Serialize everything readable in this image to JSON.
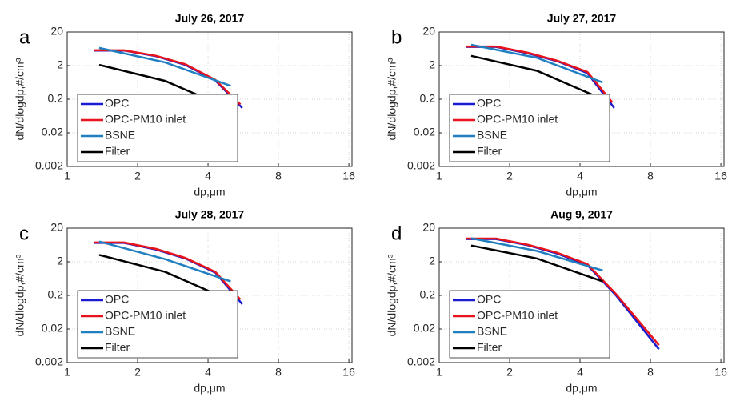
{
  "chart_data": [
    {
      "type": "line",
      "label": "a",
      "title": "July 26, 2017",
      "xlabel": "dp,μm",
      "ylabel": "dN/dlogdp,#/cm³",
      "xscale": "log",
      "yscale": "log",
      "xlim": [
        1,
        16.5
      ],
      "ylim": [
        0.002,
        20
      ],
      "xticks": [
        1,
        2,
        4,
        8,
        16
      ],
      "yticks": [
        0.002,
        0.02,
        0.2,
        2,
        20
      ],
      "grid": true,
      "legend": "lower left",
      "series": [
        {
          "name": "OPC",
          "color": "#1a1ad0",
          "x": [
            1.3,
            1.75,
            2.4,
            3.2,
            4.3,
            5.6
          ],
          "values": [
            5.6,
            5.6,
            3.8,
            2.1,
            0.72,
            0.11
          ]
        },
        {
          "name": "OPC-PM10 inlet",
          "color": "#e8141c",
          "x": [
            1.3,
            1.75,
            2.4,
            3.2,
            4.3,
            5.5
          ],
          "values": [
            5.7,
            5.7,
            3.9,
            2.2,
            0.75,
            0.14
          ]
        },
        {
          "name": "BSNE",
          "color": "#1f7fc0",
          "x": [
            1.37,
            2.62,
            5.0
          ],
          "values": [
            6.7,
            2.5,
            0.5
          ]
        },
        {
          "name": "Filter",
          "color": "#000000",
          "x": [
            1.37,
            2.62,
            5.0
          ],
          "values": [
            2.1,
            0.7,
            0.1
          ]
        }
      ]
    },
    {
      "type": "line",
      "label": "b",
      "title": "July 27, 2017",
      "xlabel": "dp,μm",
      "ylabel": "dN/dlogdp,#/cm³",
      "xscale": "log",
      "yscale": "log",
      "xlim": [
        1,
        16.5
      ],
      "ylim": [
        0.002,
        20
      ],
      "xticks": [
        1,
        2,
        4,
        8,
        16
      ],
      "yticks": [
        0.002,
        0.02,
        0.2,
        2,
        20
      ],
      "grid": true,
      "legend": "lower left",
      "series": [
        {
          "name": "OPC",
          "color": "#1a1ad0",
          "x": [
            1.3,
            1.75,
            2.4,
            3.2,
            4.3,
            5.6
          ],
          "values": [
            7.2,
            7.2,
            4.6,
            2.7,
            1.2,
            0.11
          ]
        },
        {
          "name": "OPC-PM10 inlet",
          "color": "#e8141c",
          "x": [
            1.3,
            1.75,
            2.4,
            3.2,
            4.3,
            5.5
          ],
          "values": [
            7.4,
            7.4,
            4.8,
            2.8,
            1.3,
            0.16
          ]
        },
        {
          "name": "BSNE",
          "color": "#1f7fc0",
          "x": [
            1.37,
            2.62,
            5.0
          ],
          "values": [
            8.3,
            3.4,
            0.63
          ]
        },
        {
          "name": "Filter",
          "color": "#000000",
          "x": [
            1.37,
            2.62,
            5.0
          ],
          "values": [
            3.9,
            1.4,
            0.2
          ]
        }
      ]
    },
    {
      "type": "line",
      "label": "c",
      "title": "July 28, 2017",
      "xlabel": "dp,μm",
      "ylabel": "dN/dlogdp,#/cm³",
      "xscale": "log",
      "yscale": "log",
      "xlim": [
        1,
        16.5
      ],
      "ylim": [
        0.002,
        20
      ],
      "xticks": [
        1,
        2,
        4,
        8,
        16
      ],
      "yticks": [
        0.002,
        0.02,
        0.2,
        2,
        20
      ],
      "grid": true,
      "legend": "lower left",
      "series": [
        {
          "name": "OPC",
          "color": "#1a1ad0",
          "x": [
            1.3,
            1.75,
            2.4,
            3.2,
            4.3,
            5.6
          ],
          "values": [
            7.3,
            7.3,
            4.6,
            2.5,
            0.95,
            0.11
          ]
        },
        {
          "name": "OPC-PM10 inlet",
          "color": "#e8141c",
          "x": [
            1.3,
            1.75,
            2.4,
            3.2,
            4.3,
            5.5
          ],
          "values": [
            7.5,
            7.5,
            4.8,
            2.6,
            1.0,
            0.15
          ]
        },
        {
          "name": "BSNE",
          "color": "#1f7fc0",
          "x": [
            1.37,
            2.62,
            5.0
          ],
          "values": [
            8,
            2.4,
            0.52
          ]
        },
        {
          "name": "Filter",
          "color": "#000000",
          "x": [
            1.37,
            2.62,
            5.0
          ],
          "values": [
            3.2,
            1.0,
            0.14
          ]
        }
      ]
    },
    {
      "type": "line",
      "label": "d",
      "title": "Aug 9, 2017",
      "xlabel": "dp,μm",
      "ylabel": "dN/dlogdp,#/cm³",
      "xscale": "log",
      "yscale": "log",
      "xlim": [
        1,
        16.5
      ],
      "ylim": [
        0.002,
        20
      ],
      "xticks": [
        1,
        2,
        4,
        8,
        16
      ],
      "yticks": [
        0.002,
        0.02,
        0.2,
        2,
        20
      ],
      "grid": true,
      "legend": "lower left",
      "series": [
        {
          "name": "OPC",
          "color": "#1a1ad0",
          "x": [
            1.3,
            1.75,
            2.4,
            3.2,
            4.3,
            5.7,
            8.7
          ],
          "values": [
            9.5,
            9.5,
            6.2,
            3.5,
            1.6,
            0.2,
            0.005
          ]
        },
        {
          "name": "OPC-PM10 inlet",
          "color": "#e8141c",
          "x": [
            1.3,
            1.75,
            2.4,
            3.2,
            4.3,
            5.7,
            8.7
          ],
          "values": [
            9.8,
            9.8,
            6.4,
            3.7,
            1.7,
            0.22,
            0.0066
          ]
        },
        {
          "name": "BSNE",
          "color": "#1f7fc0",
          "x": [
            1.37,
            2.62,
            5.0
          ],
          "values": [
            10,
            4.2,
            1.1
          ]
        },
        {
          "name": "Filter",
          "color": "#000000",
          "x": [
            1.37,
            2.62,
            5.0
          ],
          "values": [
            6.1,
            2.5,
            0.52
          ]
        }
      ]
    }
  ]
}
